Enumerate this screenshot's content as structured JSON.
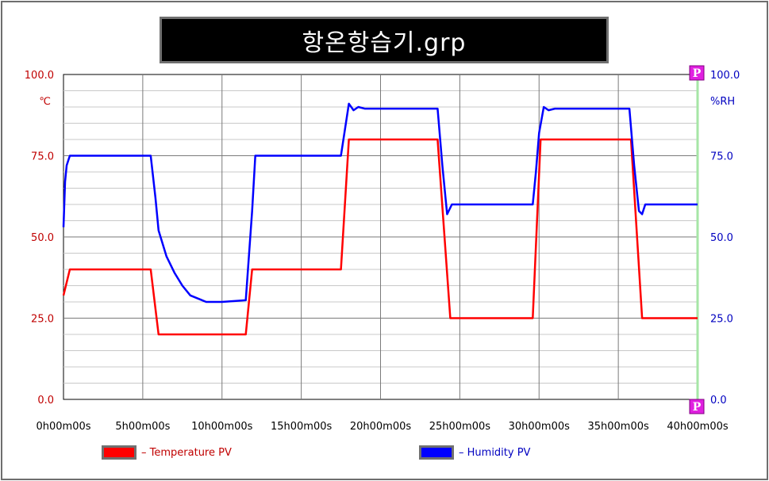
{
  "window": {
    "title": "항온항습기.grp"
  },
  "chart_data": {
    "type": "line",
    "title": "항온항습기.grp",
    "x_unit": "hours",
    "x_ticks": [
      {
        "value": 0,
        "label": "0h00m00s"
      },
      {
        "value": 5,
        "label": "5h00m00s"
      },
      {
        "value": 10,
        "label": "10h00m00s"
      },
      {
        "value": 15,
        "label": "15h00m00s"
      },
      {
        "value": 20,
        "label": "20h00m00s"
      },
      {
        "value": 25,
        "label": "25h00m00s"
      },
      {
        "value": 30,
        "label": "30h00m00s"
      },
      {
        "value": 35,
        "label": "35h00m00s"
      },
      {
        "value": 40,
        "label": "40h00m00s"
      }
    ],
    "xlim": [
      0,
      40
    ],
    "y_left": {
      "unit": "℃",
      "ylim": [
        0,
        100
      ],
      "ticks": [
        {
          "value": 0,
          "label": "0.0"
        },
        {
          "value": 25,
          "label": "25.0"
        },
        {
          "value": 50,
          "label": "50.0"
        },
        {
          "value": 75,
          "label": "75.0"
        },
        {
          "value": 100,
          "label": "100.0"
        }
      ],
      "color": "#c00000"
    },
    "y_right": {
      "unit": "%RH",
      "ylim": [
        0,
        100
      ],
      "ticks": [
        {
          "value": 0,
          "label": "0.0"
        },
        {
          "value": 25,
          "label": "25.0"
        },
        {
          "value": 50,
          "label": "50.0"
        },
        {
          "value": 75,
          "label": "75.0"
        },
        {
          "value": 100,
          "label": "100.0"
        }
      ],
      "color": "#0000c0"
    },
    "grid": true,
    "legend_position": "bottom",
    "markers": [
      "P",
      "P"
    ],
    "series": [
      {
        "name": "Temperature PV",
        "color": "#ff0000",
        "x": [
          0,
          0.4,
          5.5,
          6.0,
          11.5,
          11.9,
          17.5,
          18.0,
          23.6,
          24.4,
          29.6,
          30.1,
          35.8,
          36.5,
          40
        ],
        "y": [
          32,
          40,
          40,
          20,
          20,
          40,
          40,
          80,
          80,
          25,
          25,
          80,
          80,
          25,
          25
        ]
      },
      {
        "name": "Humidity PV",
        "color": "#0000ff",
        "x": [
          0,
          0.1,
          0.2,
          0.4,
          5.5,
          5.8,
          6.0,
          6.5,
          7.0,
          7.5,
          8.0,
          9.0,
          10.0,
          11.5,
          11.9,
          12.1,
          17.5,
          18.0,
          18.3,
          18.6,
          19.0,
          23.6,
          23.9,
          24.2,
          24.5,
          29.6,
          29.8,
          30.0,
          30.3,
          30.6,
          31.0,
          35.7,
          36.0,
          36.3,
          36.5,
          36.7,
          40
        ],
        "y": [
          53,
          67,
          72,
          75,
          75,
          62,
          52,
          44,
          39,
          35,
          32,
          30,
          30,
          30.5,
          58,
          75,
          75,
          91,
          89,
          90,
          89.5,
          89.5,
          72,
          57,
          60,
          60,
          70,
          82,
          90,
          89,
          89.5,
          89.5,
          72,
          58,
          57,
          60,
          60
        ]
      }
    ]
  }
}
